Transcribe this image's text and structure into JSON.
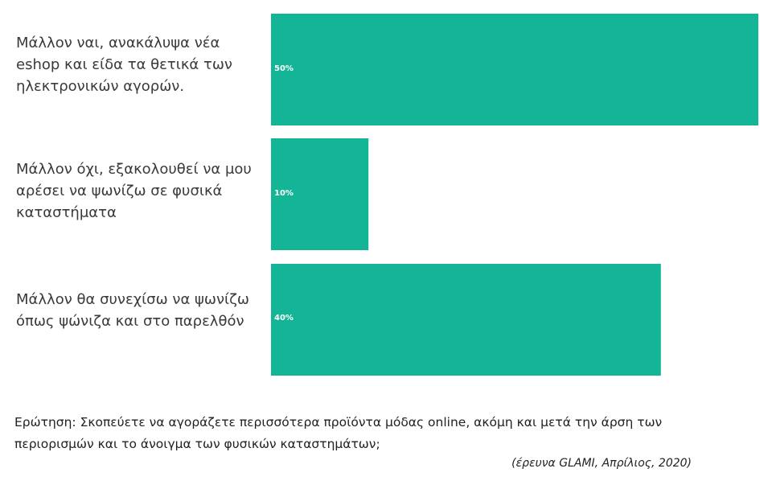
{
  "chart_data": {
    "type": "bar",
    "orientation": "horizontal",
    "categories": [
      "Μάλλον ναι, ανακάλυψα νέα eshop και είδα τα θετικά των ηλεκτρονικών αγορών.",
      "Μάλλον όχι, εξακολουθεί να μου αρέσει να ψωνίζω σε φυσικά καταστήματα",
      "Μάλλον θα συνεχίσω να ψωνίζω όπως ψώνιζα και στο παρελθόν"
    ],
    "values": [
      50,
      10,
      40
    ],
    "value_labels": [
      "50%",
      "10%",
      "40%"
    ],
    "xlim": [
      0,
      50
    ],
    "grid": false,
    "bar_color": "#13b596"
  },
  "footer": {
    "question": "Ερώτηση: Σκοπεύετε να αγοράζετε περισσότερα προϊόντα μόδας online, ακόμη και μετά την άρση των περιορισμών και το άνοιγμα των φυσικών καταστημάτων;",
    "source": "(έρευνα GLAMI, Απρίλιος, 2020)"
  }
}
